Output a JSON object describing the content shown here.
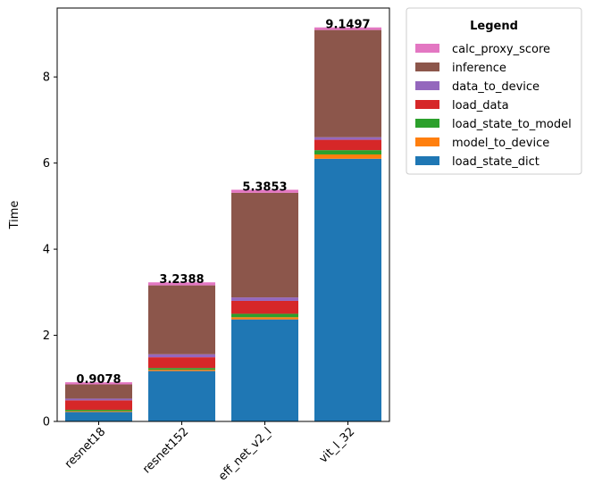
{
  "chart_data": {
    "type": "bar",
    "stacked": true,
    "categories": [
      "resnet18",
      "resnet152",
      "eff_net_v2_l",
      "vit_l_32"
    ],
    "ylabel": "Time",
    "xlabel": "",
    "ylim": [
      0,
      9.6
    ],
    "yticks": [
      "0",
      "2",
      "4",
      "6",
      "8"
    ],
    "grid": false,
    "legend": {
      "title": "Legend",
      "placement": "outside-top-right"
    },
    "series": [
      {
        "name": "load_state_dict",
        "color": "#1f77b4",
        "values": [
          0.22,
          1.17,
          2.37,
          6.1
        ]
      },
      {
        "name": "model_to_device",
        "color": "#ff7f0e",
        "values": [
          0.02,
          0.03,
          0.05,
          0.1
        ]
      },
      {
        "name": "load_state_to_model",
        "color": "#2ca02c",
        "values": [
          0.03,
          0.04,
          0.08,
          0.1
        ]
      },
      {
        "name": "load_data",
        "color": "#d62728",
        "values": [
          0.22,
          0.25,
          0.3,
          0.24
        ]
      },
      {
        "name": "data_to_device",
        "color": "#9467bd",
        "values": [
          0.04,
          0.07,
          0.08,
          0.06
        ]
      },
      {
        "name": "inference",
        "color": "#8c564b",
        "values": [
          0.33,
          1.6,
          2.43,
          2.49
        ]
      },
      {
        "name": "calc_proxy_score",
        "color": "#e377c2",
        "values": [
          0.05,
          0.07,
          0.07,
          0.06
        ]
      }
    ],
    "legend_order": [
      "calc_proxy_score",
      "inference",
      "data_to_device",
      "load_data",
      "load_state_to_model",
      "model_to_device",
      "load_state_dict"
    ],
    "totals": [
      "0.9078",
      "3.2388",
      "5.3853",
      "9.1497"
    ]
  }
}
